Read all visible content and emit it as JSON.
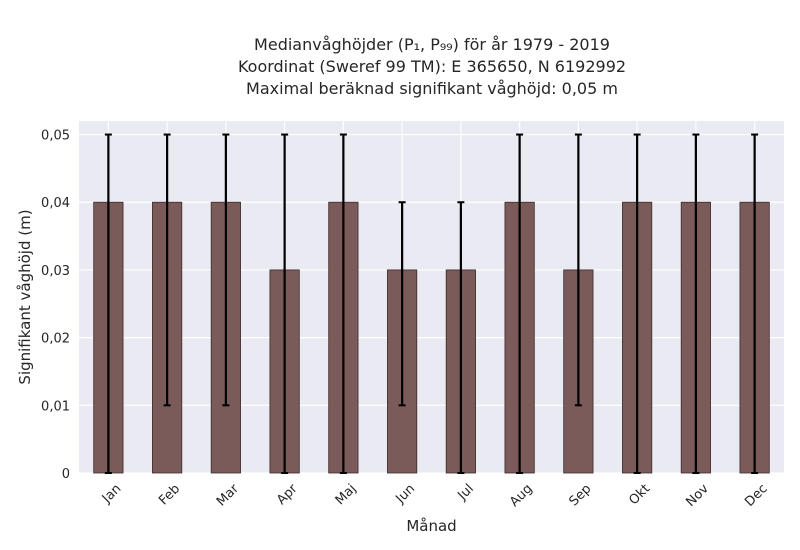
{
  "chart_data": {
    "type": "bar",
    "title_lines": [
      "Medianvåghöjder (P₁, P₉₉) för år 1979 - 2019",
      "Koordinat (Sweref 99 TM): E 365650, N 6192992",
      "Maximal beräknad signifikant våghöjd: 0,05 m"
    ],
    "xlabel": "Månad",
    "ylabel": "Signifikant våghöjd (m)",
    "categories": [
      "Jan",
      "Feb",
      "Mar",
      "Apr",
      "Maj",
      "Jun",
      "Jul",
      "Aug",
      "Sep",
      "Okt",
      "Nov",
      "Dec"
    ],
    "values": [
      0.04,
      0.04,
      0.04,
      0.03,
      0.04,
      0.03,
      0.03,
      0.04,
      0.03,
      0.04,
      0.04,
      0.04
    ],
    "p1": [
      0,
      0.01,
      0.01,
      0,
      0,
      0.01,
      0,
      0,
      0.01,
      0,
      0,
      0
    ],
    "p99": [
      0.05,
      0.05,
      0.05,
      0.05,
      0.05,
      0.04,
      0.04,
      0.05,
      0.05,
      0.05,
      0.05,
      0.05
    ],
    "yticks": [
      0,
      0.01,
      0.02,
      0.03,
      0.04,
      0.05
    ],
    "ytick_labels": [
      "0",
      "0,01",
      "0,02",
      "0,03",
      "0,04",
      "0,05"
    ],
    "ylim": [
      0,
      0.052
    ],
    "grid": true,
    "colors": {
      "bar": "#7b5a5a",
      "bar_edge": "#3d2c2c",
      "error": "#000000",
      "plot_bg": "#eaeaf2",
      "grid": "#ffffff"
    }
  }
}
